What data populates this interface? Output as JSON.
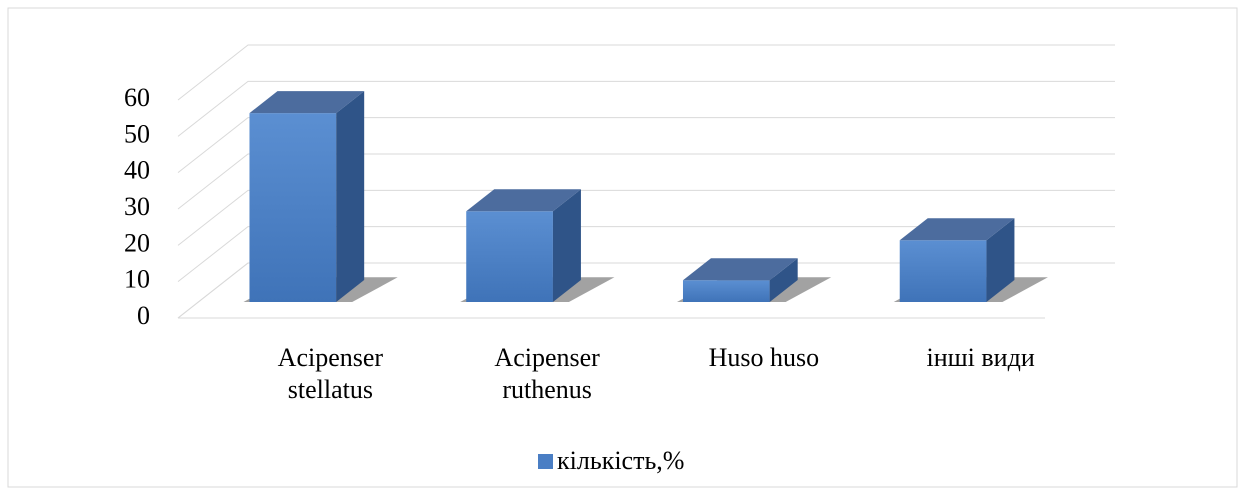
{
  "chart_data": {
    "type": "bar3d",
    "categories": [
      "Acipenser stellatus",
      "Acipenser ruthenus",
      "Huso huso",
      "інші види"
    ],
    "series": [
      {
        "name": "кількість,%",
        "color": "#4a7ec4",
        "values": [
          52,
          25,
          6,
          17
        ]
      }
    ],
    "ylim": [
      0,
      60
    ],
    "yticks": [
      0,
      10,
      20,
      30,
      40,
      50,
      60
    ],
    "grid": true,
    "legend": "bottom"
  }
}
